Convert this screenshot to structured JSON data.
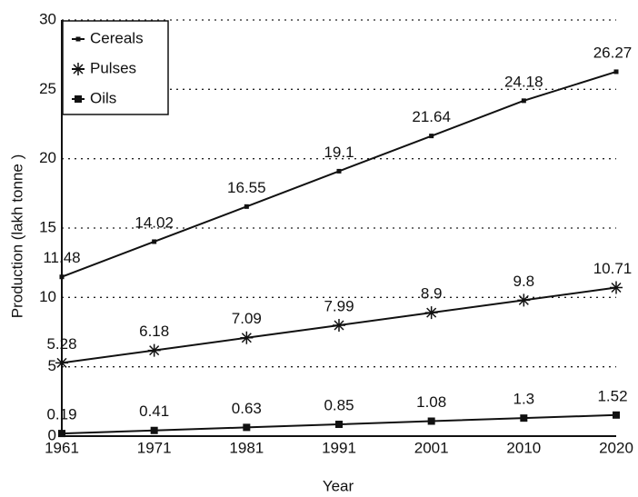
{
  "chart_data": {
    "type": "line",
    "categories": [
      "1961",
      "1971",
      "1981",
      "1991",
      "2001",
      "2010",
      "2020"
    ],
    "series": [
      {
        "name": "Cereals",
        "color": "#111111",
        "marker": "dot",
        "values": [
          11.48,
          14.02,
          16.55,
          19.1,
          21.64,
          24.18,
          26.27
        ]
      },
      {
        "name": "Pulses",
        "color": "#111111",
        "marker": "asterisk",
        "values": [
          5.28,
          6.18,
          7.09,
          7.99,
          8.9,
          9.8,
          10.71
        ]
      },
      {
        "name": "Oils",
        "color": "#111111",
        "marker": "square",
        "values": [
          0.19,
          0.41,
          0.63,
          0.85,
          1.08,
          1.3,
          1.52
        ]
      }
    ],
    "ylim": [
      0,
      30
    ],
    "yticks": [
      0,
      5,
      10,
      15,
      20,
      25,
      30
    ],
    "xlabel": "Year",
    "ylabel": "Production (lakh tonne )",
    "grid": true,
    "legend": "upper left"
  }
}
